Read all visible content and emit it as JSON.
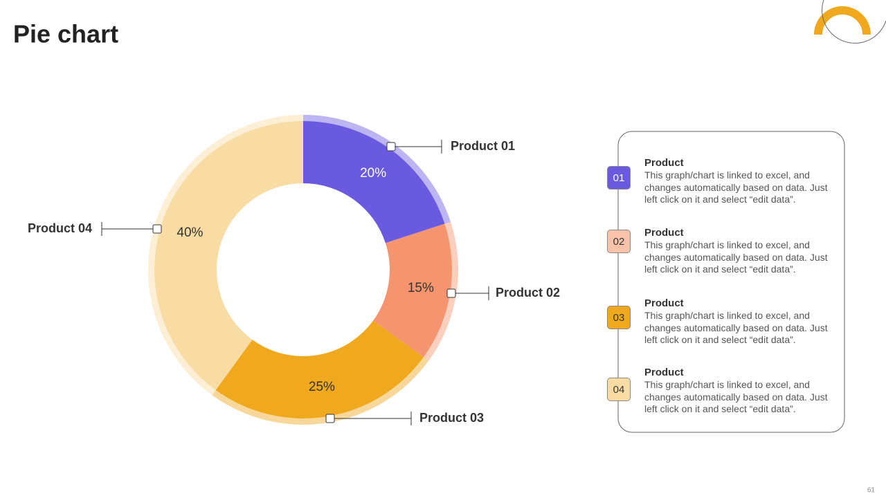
{
  "chart_data": {
    "type": "pie",
    "donut": true,
    "title": "Pie chart",
    "categories": [
      "Product 01",
      "Product 02",
      "Product 03",
      "Product 04"
    ],
    "values": [
      20,
      15,
      25,
      40
    ],
    "value_labels": [
      "20%",
      "15%",
      "25%",
      "40%"
    ],
    "colors": [
      "#6a5ae0",
      "#f4956f",
      "#f0a91e",
      "#f8dca4"
    ],
    "value_label_colors": [
      "#ffffff",
      "#333333",
      "#333333",
      "#333333"
    ]
  },
  "panel": {
    "items": [
      {
        "number": "01",
        "title": "Product",
        "text": "This graph/chart is linked to excel, and changes automatically based on data. Just left click on it and select “edit data”."
      },
      {
        "number": "02",
        "title": "Product",
        "text": "This graph/chart is linked to excel, and changes automatically based on data. Just left click on it and select “edit data”."
      },
      {
        "number": "03",
        "title": "Product",
        "text": "This graph/chart is linked to excel, and changes automatically based on data. Just left click on it and select “edit data”."
      },
      {
        "number": "04",
        "title": "Product",
        "text": "This graph/chart is linked to excel, and changes automatically based on data. Just left click on it and select “edit data”."
      }
    ]
  },
  "page_number": "61"
}
